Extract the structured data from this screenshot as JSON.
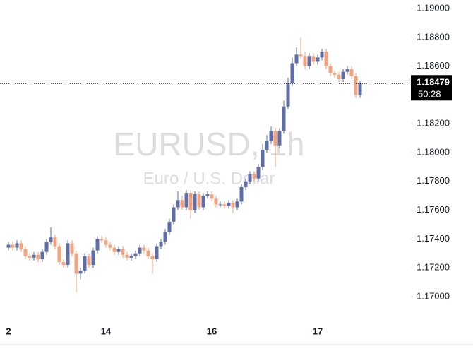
{
  "chart_data": {
    "type": "candlestick",
    "title": "EURUSD, 1h",
    "subtitle": "Euro / U.S. Dollar",
    "up_color": "#5f6ea9",
    "down_color": "#f2a27d",
    "countdown": "50:28",
    "categories": [
      "2",
      null,
      null,
      null,
      null,
      null,
      null,
      null,
      null,
      null,
      null,
      null,
      null,
      null,
      null,
      null,
      null,
      null,
      null,
      null,
      null,
      null,
      null,
      "14",
      null,
      null,
      null,
      null,
      null,
      null,
      null,
      null,
      null,
      null,
      null,
      null,
      null,
      null,
      null,
      null,
      null,
      null,
      null,
      null,
      null,
      null,
      null,
      null,
      "16",
      null,
      null,
      null,
      null,
      null,
      null,
      null,
      null,
      null,
      null,
      null,
      null,
      null,
      null,
      null,
      null,
      null,
      null,
      null,
      null,
      null,
      null,
      null,
      null,
      "17",
      null,
      null,
      null,
      null,
      null,
      null,
      null,
      null,
      null,
      null
    ],
    "open": [
      1.1734,
      1.1736,
      1.1734,
      1.1737,
      1.1733,
      1.1728,
      1.1727,
      1.1729,
      1.1726,
      1.1731,
      1.1738,
      1.1741,
      1.1735,
      1.1724,
      1.1722,
      1.1737,
      1.173,
      1.1716,
      1.1718,
      1.1728,
      1.1722,
      1.1732,
      1.174,
      1.1739,
      1.1736,
      1.1734,
      1.1731,
      1.1733,
      1.1729,
      1.1727,
      1.1728,
      1.173,
      1.1734,
      1.1732,
      1.1728,
      1.1726,
      1.1735,
      1.1738,
      1.1745,
      1.1752,
      1.1762,
      1.1767,
      1.1762,
      1.1772,
      1.176,
      1.1771,
      1.1762,
      1.177,
      1.1771,
      1.1768,
      1.1764,
      1.1764,
      1.1763,
      1.1765,
      1.1762,
      1.1766,
      1.1776,
      1.178,
      1.1785,
      1.1782,
      1.179,
      1.1802,
      1.1808,
      1.1815,
      1.1805,
      1.1815,
      1.1832,
      1.1848,
      1.1862,
      1.1868,
      1.1867,
      1.186,
      1.1867,
      1.1863,
      1.1866,
      1.187,
      1.186,
      1.1855,
      1.1854,
      1.1851,
      1.1856,
      1.1858,
      1.1853,
      1.184
    ],
    "high": [
      1.1738,
      1.1738,
      1.1739,
      1.1739,
      1.1735,
      1.173,
      1.1731,
      1.1731,
      1.1733,
      1.174,
      1.1748,
      1.1743,
      1.1737,
      1.1726,
      1.1739,
      1.1739,
      1.1732,
      1.172,
      1.173,
      1.173,
      1.1734,
      1.1742,
      1.1742,
      1.1741,
      1.1738,
      1.1736,
      1.1735,
      1.1735,
      1.1731,
      1.173,
      1.1732,
      1.1736,
      1.1736,
      1.1734,
      1.173,
      1.1737,
      1.174,
      1.1747,
      1.1754,
      1.1764,
      1.1773,
      1.177,
      1.1774,
      1.1774,
      1.1773,
      1.1773,
      1.1772,
      1.1773,
      1.1773,
      1.177,
      1.1766,
      1.1766,
      1.1767,
      1.1767,
      1.1768,
      1.1778,
      1.1782,
      1.1787,
      1.1787,
      1.1792,
      1.1806,
      1.1812,
      1.1818,
      1.1817,
      1.1817,
      1.1836,
      1.1852,
      1.1866,
      1.1873,
      1.188,
      1.187,
      1.1869,
      1.1869,
      1.1868,
      1.1872,
      1.1872,
      1.1862,
      1.1857,
      1.1856,
      1.1858,
      1.186,
      1.186,
      1.1855,
      1.185
    ],
    "low": [
      1.1732,
      1.1732,
      1.1732,
      1.1731,
      1.1726,
      1.1725,
      1.1725,
      1.1724,
      1.1724,
      1.1729,
      1.1736,
      1.1733,
      1.1722,
      1.172,
      1.172,
      1.1728,
      1.1703,
      1.1712,
      1.1716,
      1.172,
      1.172,
      1.173,
      1.1737,
      1.1734,
      1.1732,
      1.1729,
      1.1729,
      1.1727,
      1.1725,
      1.1725,
      1.1726,
      1.1728,
      1.173,
      1.1726,
      1.1716,
      1.1724,
      1.1733,
      1.1736,
      1.1743,
      1.175,
      1.176,
      1.176,
      1.176,
      1.1754,
      1.1758,
      1.176,
      1.176,
      1.1768,
      1.1766,
      1.1762,
      1.1762,
      1.1761,
      1.1761,
      1.1758,
      1.176,
      1.1764,
      1.1774,
      1.1778,
      1.178,
      1.178,
      1.1788,
      1.18,
      1.1806,
      1.179,
      1.1803,
      1.1813,
      1.183,
      1.1846,
      1.186,
      1.1865,
      1.1858,
      1.1858,
      1.1861,
      1.1861,
      1.1864,
      1.1858,
      1.1853,
      1.1852,
      1.1849,
      1.1849,
      1.1854,
      1.1851,
      1.1838,
      1.1838
    ],
    "close": [
      1.1736,
      1.1734,
      1.1737,
      1.1733,
      1.1728,
      1.1727,
      1.1729,
      1.1726,
      1.1731,
      1.1738,
      1.1741,
      1.1735,
      1.1724,
      1.1722,
      1.1737,
      1.173,
      1.1716,
      1.1718,
      1.1728,
      1.1722,
      1.1732,
      1.174,
      1.1739,
      1.1736,
      1.1734,
      1.1731,
      1.1733,
      1.1729,
      1.1727,
      1.1728,
      1.173,
      1.1734,
      1.1732,
      1.1728,
      1.1726,
      1.1735,
      1.1738,
      1.1745,
      1.1752,
      1.1762,
      1.1767,
      1.1762,
      1.1772,
      1.176,
      1.1771,
      1.1762,
      1.177,
      1.1771,
      1.1768,
      1.1764,
      1.1764,
      1.1763,
      1.1765,
      1.1762,
      1.1766,
      1.1776,
      1.178,
      1.1785,
      1.1782,
      1.179,
      1.1802,
      1.1808,
      1.1815,
      1.1805,
      1.1815,
      1.1832,
      1.1848,
      1.1862,
      1.1868,
      1.1867,
      1.186,
      1.1867,
      1.1863,
      1.1866,
      1.187,
      1.186,
      1.1855,
      1.1854,
      1.1851,
      1.1856,
      1.1858,
      1.1853,
      1.184,
      1.18479
    ],
    "ylim": [
      1.16828,
      1.19059
    ],
    "yticks": [
      {
        "value": 1.19,
        "label": "1.19000"
      },
      {
        "value": 1.188,
        "label": "1.18800"
      },
      {
        "value": 1.186,
        "label": "1.18600"
      },
      {
        "value": 1.182,
        "label": "1.18200"
      },
      {
        "value": 1.18,
        "label": "1.18000"
      },
      {
        "value": 1.178,
        "label": "1.17800"
      },
      {
        "value": 1.176,
        "label": "1.17600"
      },
      {
        "value": 1.174,
        "label": "1.17400"
      },
      {
        "value": 1.172,
        "label": "1.17200"
      },
      {
        "value": 1.17,
        "label": "1.17000"
      }
    ],
    "grid": false
  }
}
